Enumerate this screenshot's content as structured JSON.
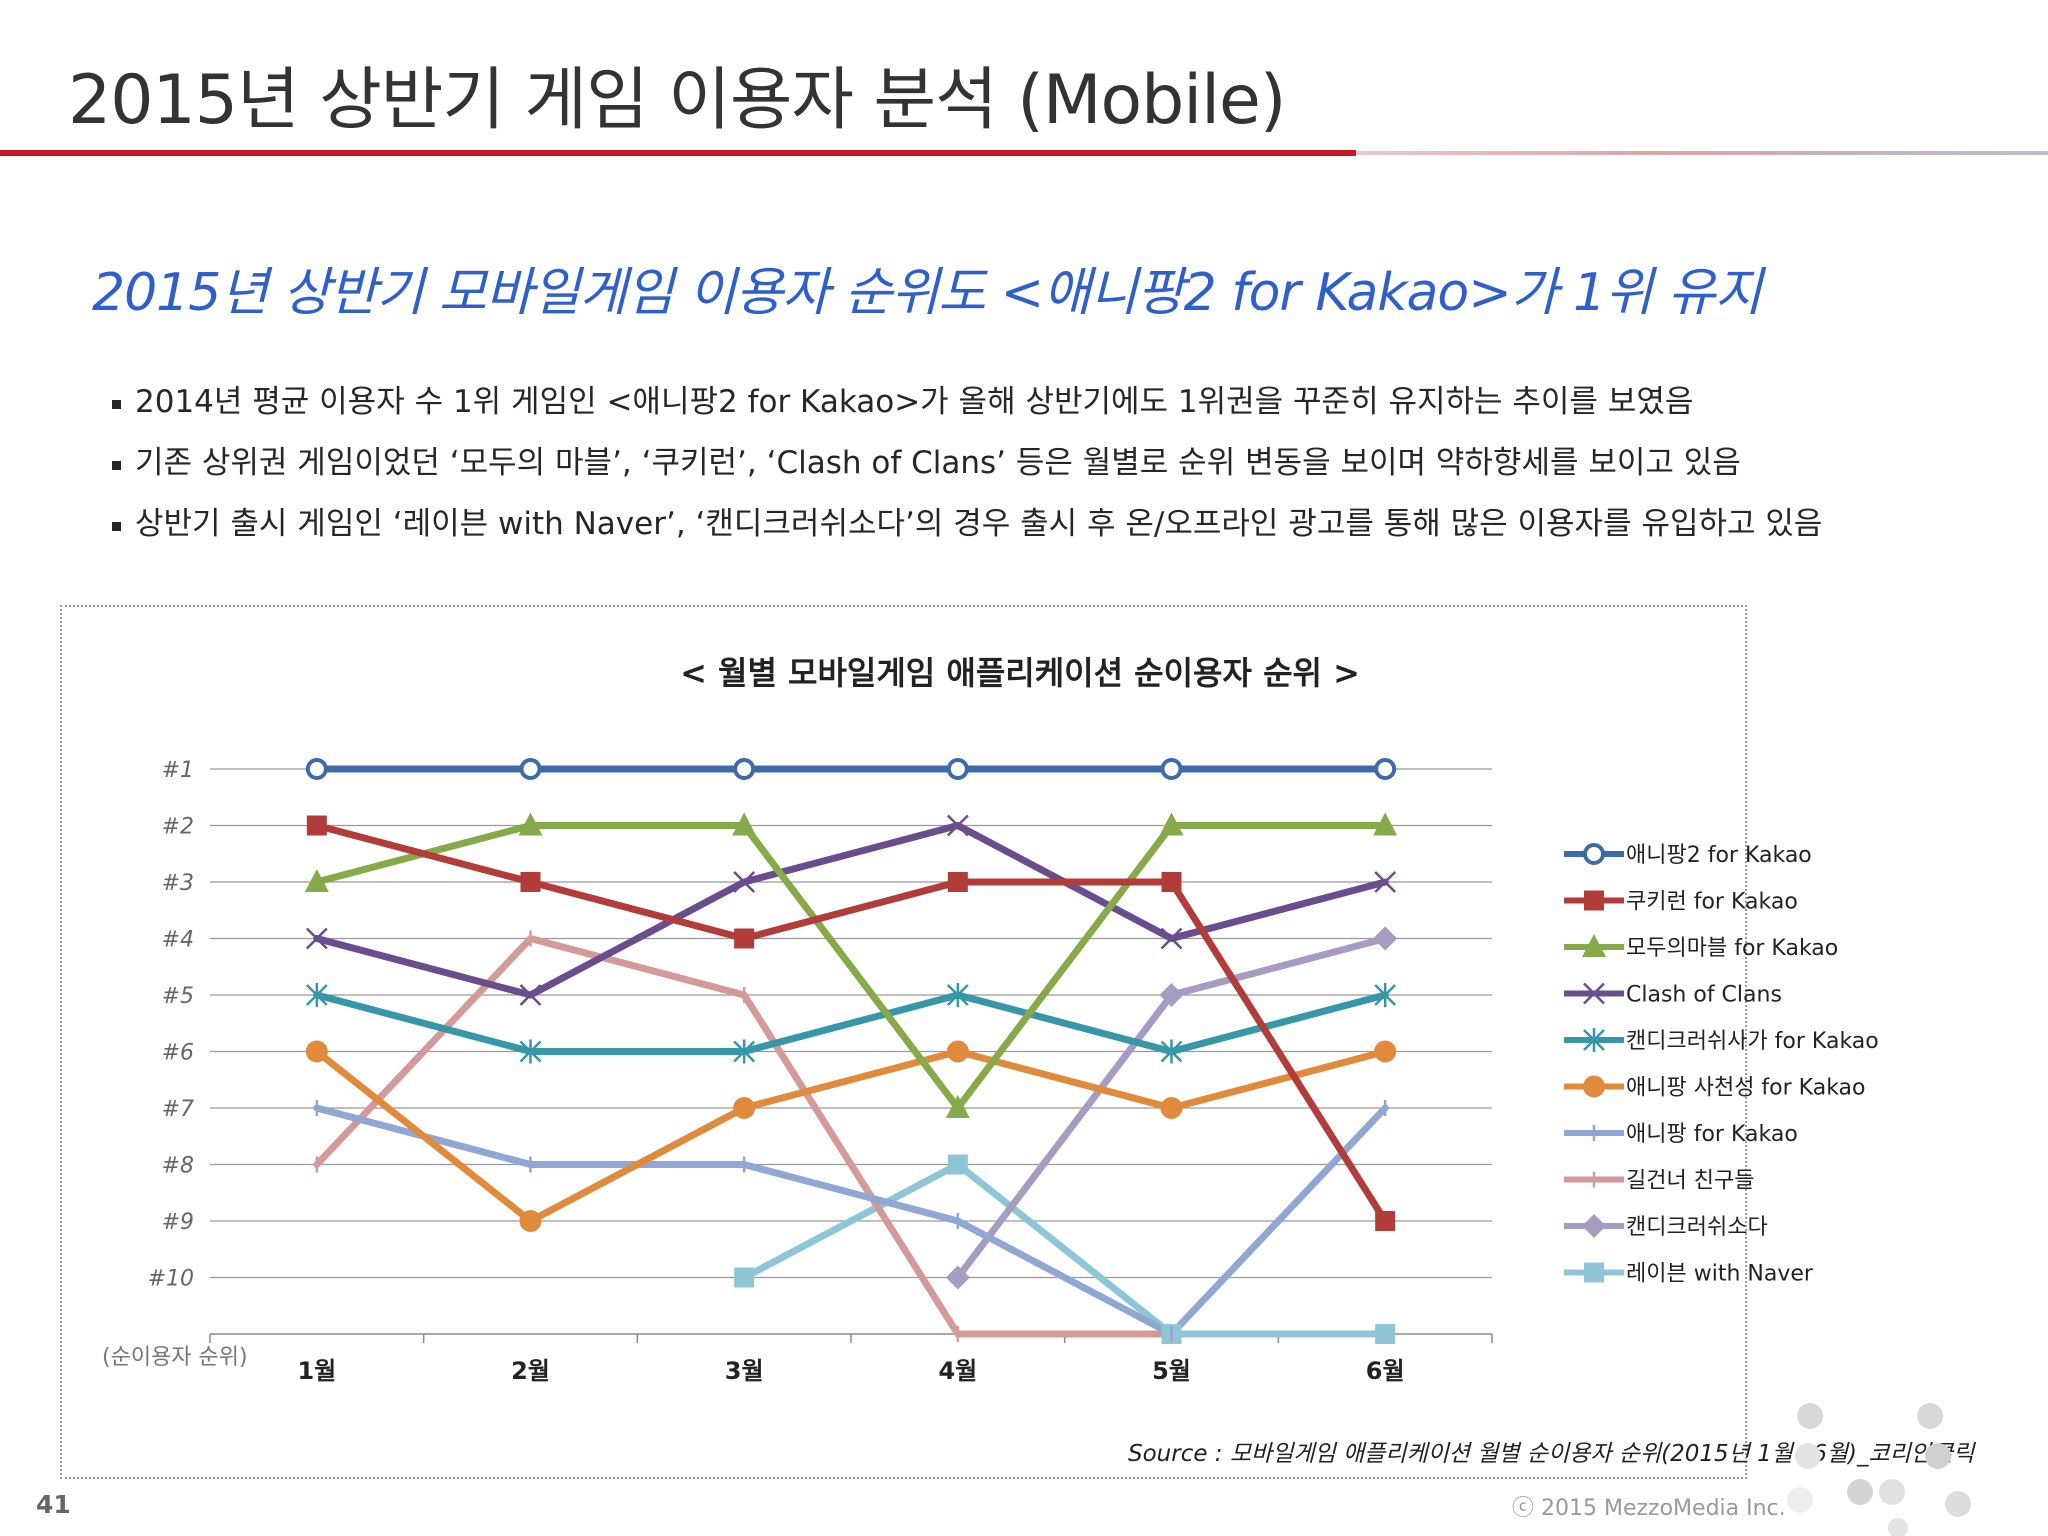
{
  "page": {
    "title": "2015년 상반기 게임 이용자 분석 (Mobile)",
    "subtitle": "2015년 상반기 모바일게임 이용자 순위도 <애니팡2 for Kakao>가  1위 유지",
    "bullets": [
      "2014년 평균 이용자 수 1위 게임인 <애니팡2 for Kakao>가 올해 상반기에도 1위권을 꾸준히 유지하는 추이를 보였음",
      "기존 상위권 게임이었던 ‘모두의 마블’, ‘쿠키런’, ‘Clash of Clans’ 등은 월별로 순위 변동을 보이며 약하향세를 보이고 있음",
      "상반기 출시 게임인 ‘레이븐 with Naver’, ‘캔디크러쉬소다’의 경우 출시 후 온/오프라인 광고를 통해 많은 이용자를 유입하고 있음"
    ],
    "source": "Source : 모바일게임 애플리케이션 월별 순이용자 순위(2015년 1월~6월)_코리안클릭",
    "page_number": "41",
    "copyright": "ⓒ 2015 MezzoMedia Inc.",
    "colors": {
      "accent_red": "#c8171e",
      "subtitle_blue": "#2f5fc9"
    }
  },
  "chart_data": {
    "type": "line",
    "title": "< 월별 모바일게임 애플리케이션 순이용자 순위  >",
    "ylabel": "(순이용자 순위)",
    "xlabel": "",
    "categories": [
      "1월",
      "2월",
      "3월",
      "4월",
      "5월",
      "6월"
    ],
    "y_ticks": [
      "#1",
      "#2",
      "#3",
      "#4",
      "#5",
      "#6",
      "#7",
      "#8",
      "#9",
      "#10"
    ],
    "ylim": [
      1,
      11
    ],
    "y_inverted": true,
    "grid": true,
    "legend_position": "right",
    "note": "",
    "series": [
      {
        "name": "애니팡2 for Kakao",
        "color": "#3f6aa8",
        "marker": "circle-open",
        "values": [
          1,
          1,
          1,
          1,
          1,
          1
        ]
      },
      {
        "name": "쿠키런 for Kakao",
        "color": "#b13c3a",
        "marker": "square",
        "values": [
          2,
          3,
          4,
          3,
          3,
          9
        ]
      },
      {
        "name": "모두의마블 for Kakao",
        "color": "#86a94a",
        "marker": "triangle",
        "values": [
          3,
          2,
          2,
          7,
          2,
          2
        ]
      },
      {
        "name": "Clash of Clans",
        "color": "#6a4d8c",
        "marker": "x",
        "values": [
          4,
          5,
          3,
          2,
          4,
          3
        ]
      },
      {
        "name": "캔디크러쉬사가 for Kakao",
        "color": "#3797a8",
        "marker": "star",
        "values": [
          5,
          6,
          6,
          5,
          6,
          5
        ]
      },
      {
        "name": "애니팡 사천성 for Kakao",
        "color": "#e08a3c",
        "marker": "circle",
        "values": [
          6,
          9,
          7,
          6,
          7,
          6
        ]
      },
      {
        "name": "애니팡 for Kakao",
        "color": "#8fa7d2",
        "marker": "dash",
        "values": [
          7,
          8,
          8,
          9,
          11,
          7
        ]
      },
      {
        "name": "길건너 친구들",
        "color": "#d49a9a",
        "marker": "dash",
        "values": [
          8,
          4,
          5,
          11,
          11,
          null
        ]
      },
      {
        "name": "캔디크러쉬소다",
        "color": "#a79bc2",
        "marker": "diamond",
        "values": [
          null,
          null,
          null,
          10,
          5,
          4
        ]
      },
      {
        "name": "레이븐 with Naver",
        "color": "#8fc6d6",
        "marker": "square",
        "values": [
          null,
          null,
          10,
          8,
          11,
          11
        ]
      }
    ]
  }
}
